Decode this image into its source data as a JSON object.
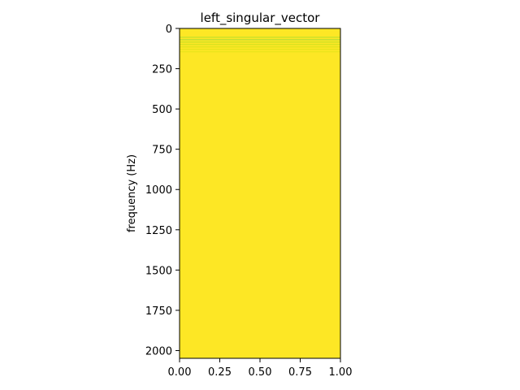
{
  "chart_data": {
    "type": "heatmap",
    "title": "left_singular_vector",
    "xlabel": "",
    "ylabel": "frequency (Hz)",
    "xlim": [
      0,
      1
    ],
    "ylim": [
      2048,
      0
    ],
    "x_ticks": [
      "0.00",
      "0.25",
      "0.50",
      "0.75",
      "1.00"
    ],
    "y_ticks": [
      "0",
      "250",
      "500",
      "750",
      "1000",
      "1250",
      "1500",
      "1750",
      "2000"
    ],
    "x_tick_values": [
      0,
      0.25,
      0.5,
      0.75,
      1
    ],
    "y_tick_values": [
      0,
      250,
      500,
      750,
      1000,
      1250,
      1500,
      1750,
      2000
    ],
    "colormap": "viridis",
    "background_value_color": "#fde725",
    "bands": [
      {
        "frequency": 55,
        "color": "#b5de2b"
      },
      {
        "frequency": 70,
        "color": "#a0da39"
      },
      {
        "frequency": 85,
        "color": "#bddf26"
      },
      {
        "frequency": 100,
        "color": "#c8e020"
      },
      {
        "frequency": 115,
        "color": "#d5e21a"
      },
      {
        "frequency": 130,
        "color": "#dfe318"
      },
      {
        "frequency": 145,
        "color": "#e5e419"
      }
    ]
  }
}
